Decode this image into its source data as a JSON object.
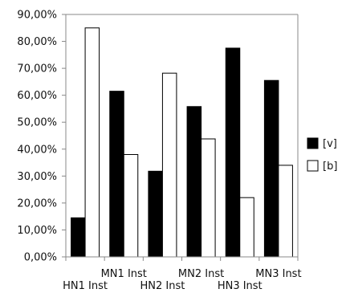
{
  "chart_data": {
    "type": "bar",
    "categories": [
      "HN1 Inst",
      "MN1 Inst",
      "HN2 Inst",
      "MN2 Inst",
      "HN3 Inst",
      "MN3 Inst"
    ],
    "series": [
      {
        "name": "[v]",
        "values": [
          14.5,
          61.5,
          31.8,
          55.8,
          77.5,
          65.5
        ],
        "color": "#000000"
      },
      {
        "name": "[b]",
        "values": [
          85.0,
          38.0,
          68.2,
          43.8,
          22.0,
          34.0
        ],
        "color": "#ffffff"
      }
    ],
    "y_ticks": [
      "0,00%",
      "10,00%",
      "20,00%",
      "30,00%",
      "40,00%",
      "50,00%",
      "60,00%",
      "70,00%",
      "80,00%",
      "90,00%"
    ],
    "ylim": [
      0,
      90
    ],
    "grid": false,
    "legend_position": "right",
    "x_label_layout": "staggered"
  }
}
